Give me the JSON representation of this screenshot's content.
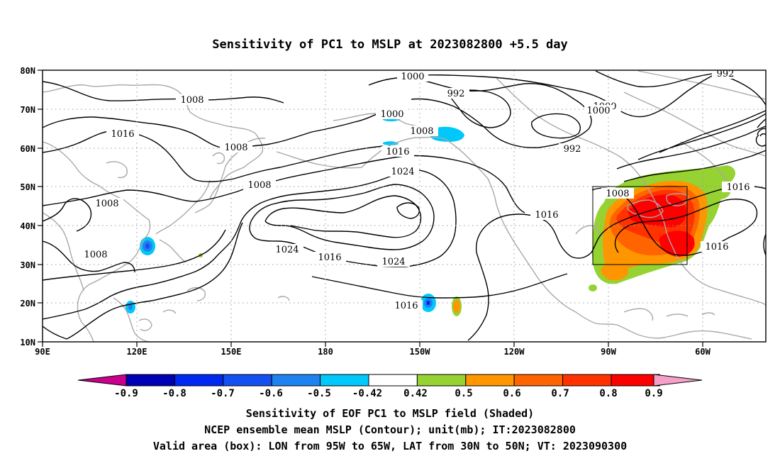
{
  "title": "Sensitivity of PC1 to MSLP at 2023082800 +5.5 day",
  "map": {
    "lat_ticks": [
      "80N",
      "70N",
      "60N",
      "50N",
      "40N",
      "30N",
      "20N",
      "10N"
    ],
    "lon_ticks": [
      "90E",
      "120E",
      "150E",
      "180",
      "150W",
      "120W",
      "90W",
      "60W"
    ],
    "lon_range": [
      "90E",
      "45W"
    ],
    "lat_range": [
      "10N",
      "80N"
    ],
    "grid": "dotted",
    "coastline_color": "#a8a8a8",
    "contour_color": "#000000",
    "contour_labels": [
      "1000",
      "992",
      "1008",
      "1000",
      "1000",
      "1016",
      "1008",
      "992",
      "1008",
      "1016",
      "1024",
      "1008",
      "1008",
      "1016",
      "1016",
      "1008",
      "1024",
      "1016",
      "1024",
      "1016",
      "992"
    ],
    "valid_box": {
      "lon_from": "95W",
      "lon_to": "65W",
      "lat_from": "30N",
      "lat_to": "50N"
    }
  },
  "colorbar": {
    "labels": [
      "-0.9",
      "-0.8",
      "-0.7",
      "-0.6",
      "-0.5",
      "-0.42",
      "0.42",
      "0.5",
      "0.6",
      "0.7",
      "0.8",
      "0.9"
    ],
    "colors": [
      "#0000b4",
      "#0028f0",
      "#1450f0",
      "#1e82f0",
      "#00c8fa",
      "#ffffff",
      "#96d232",
      "#ff9600",
      "#ff6400",
      "#ff3200",
      "#ff0000"
    ],
    "end_low": "#c8008c",
    "end_high": "#f4a0c8"
  },
  "captions": {
    "line1": "Sensitivity of EOF PC1 to MSLP field (Shaded)",
    "line2": "NCEP ensemble mean MSLP (Contour); unit(mb); IT:2023082800",
    "line3": "Valid area (box): LON from 95W to 65W, LAT from 30N to 50N; VT: 2023090300"
  }
}
